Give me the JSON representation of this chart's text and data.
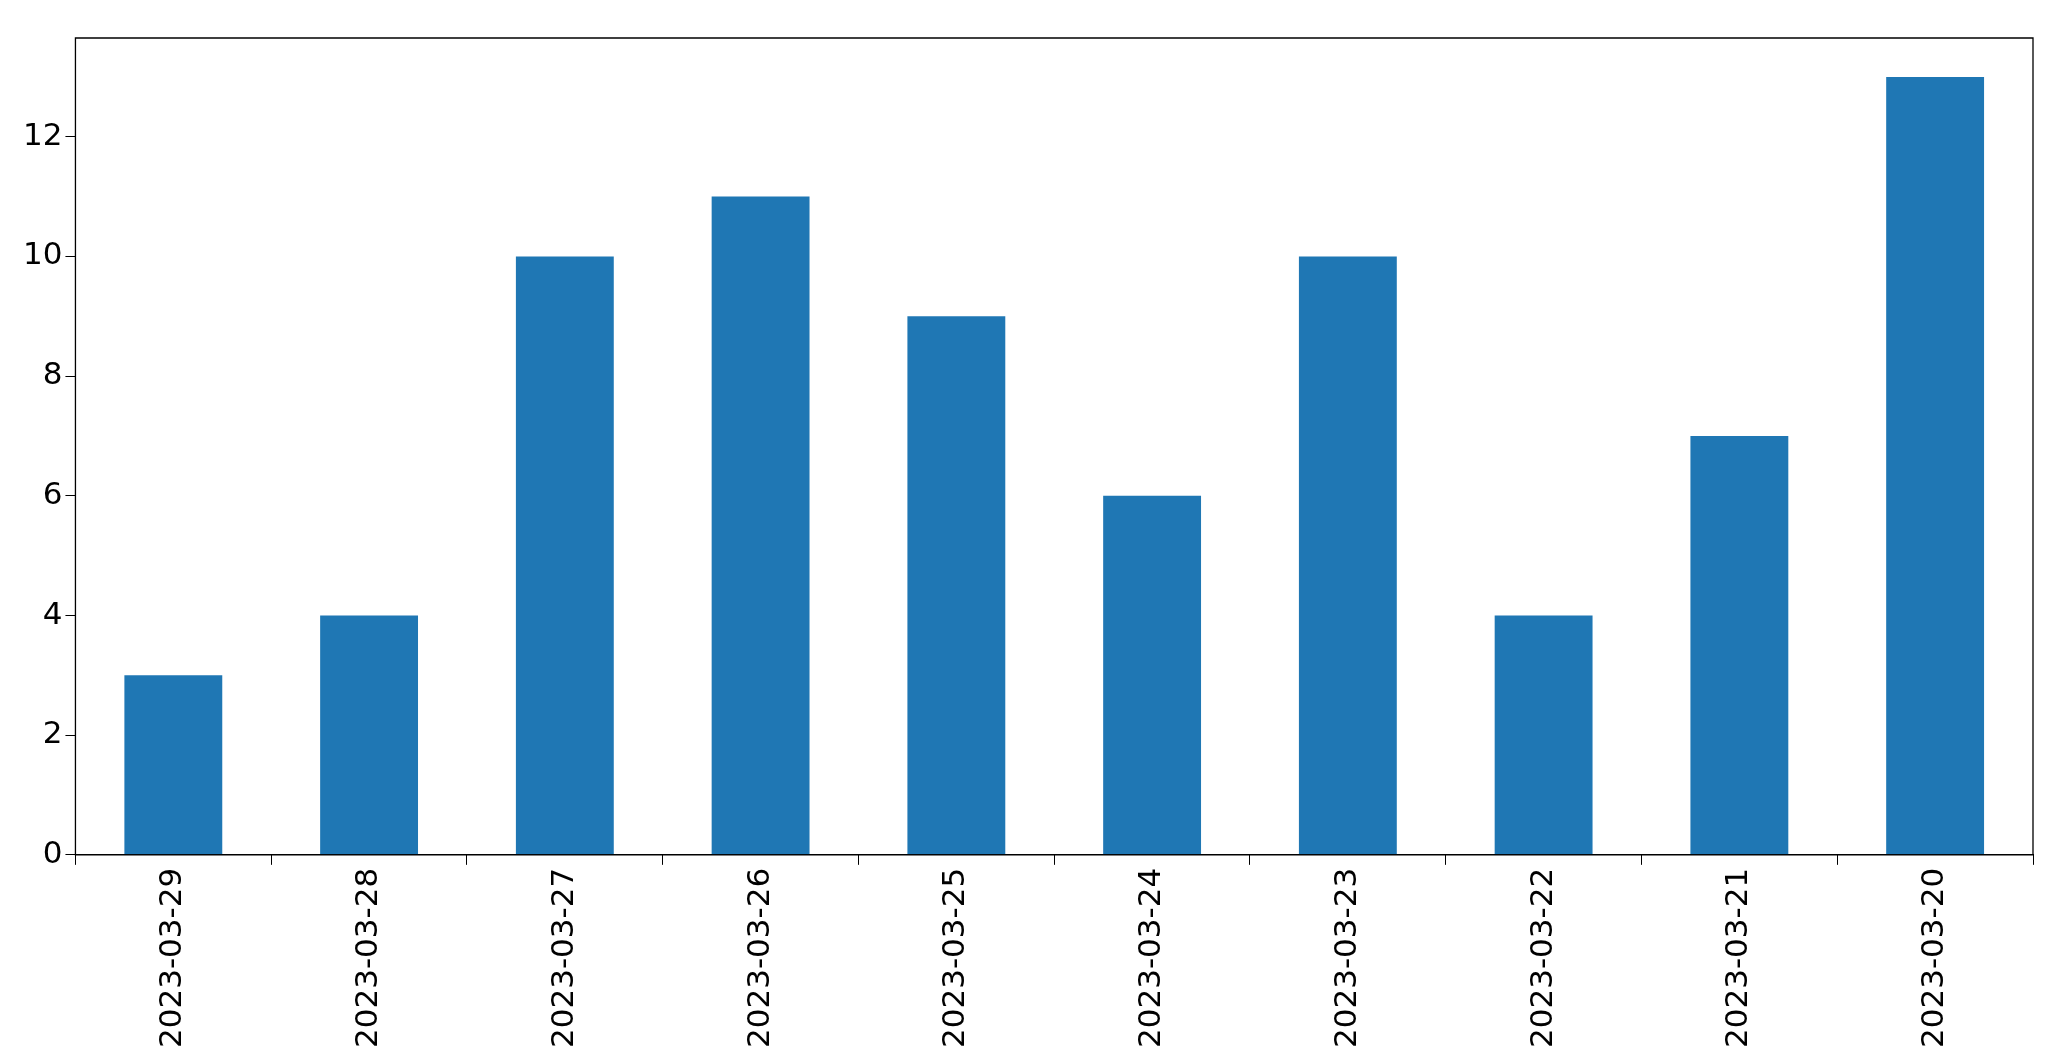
{
  "chart_data": {
    "type": "bar",
    "categories": [
      "2023-03-29",
      "2023-03-28",
      "2023-03-27",
      "2023-03-26",
      "2023-03-25",
      "2023-03-24",
      "2023-03-23",
      "2023-03-22",
      "2023-03-21",
      "2023-03-20"
    ],
    "values": [
      3,
      4,
      10,
      11,
      9,
      6,
      10,
      4,
      7,
      13
    ],
    "color": "#1f77b4",
    "ylim": [
      0,
      13.65
    ],
    "yticks": [
      0,
      2,
      4,
      6,
      8,
      10,
      12
    ]
  }
}
